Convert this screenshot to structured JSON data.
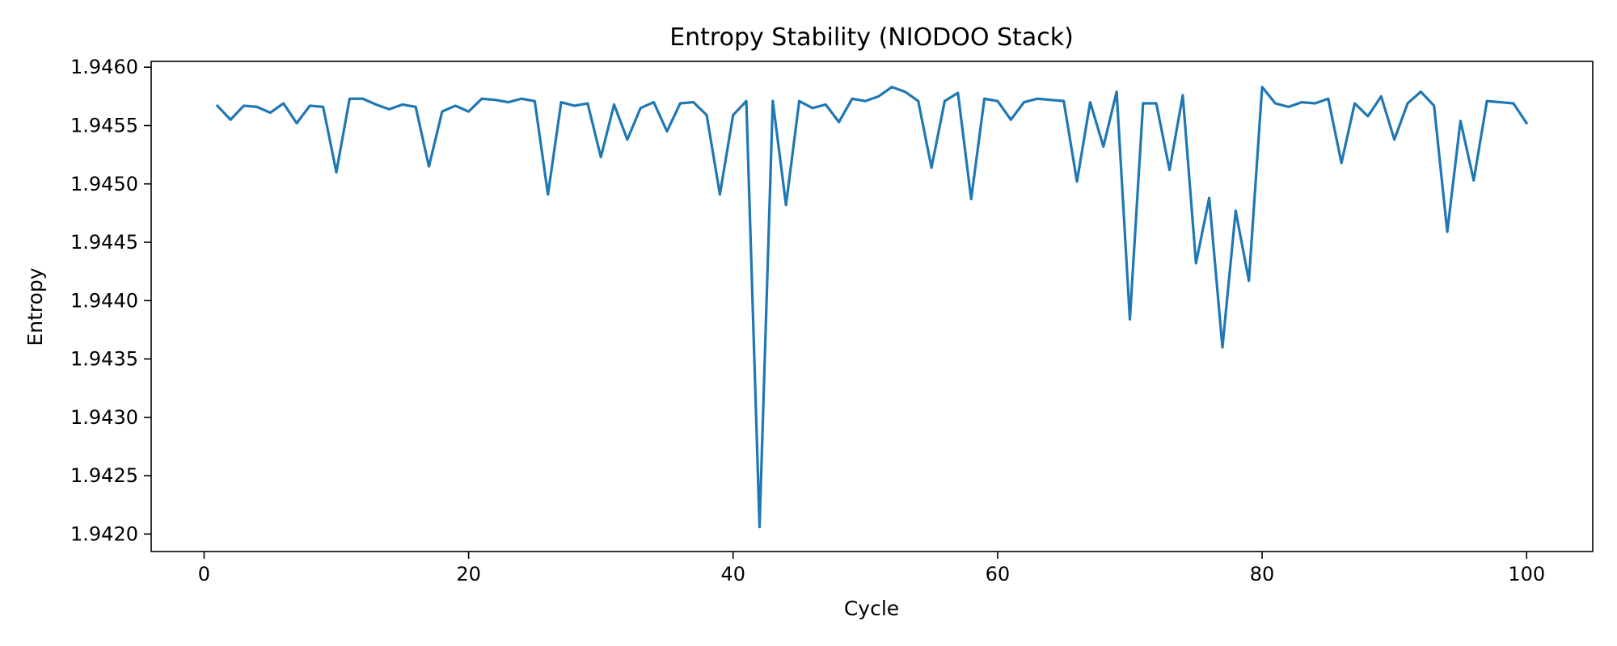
{
  "chart_data": {
    "type": "line",
    "title": "Entropy Stability (NIODOO Stack)",
    "xlabel": "Cycle",
    "ylabel": "Entropy",
    "xlim": [
      -4,
      105
    ],
    "ylim": [
      1.94185,
      1.94605
    ],
    "xticks": [
      0,
      20,
      40,
      60,
      80,
      100
    ],
    "xtick_labels": [
      "0",
      "20",
      "40",
      "60",
      "80",
      "100"
    ],
    "yticks": [
      1.942,
      1.9425,
      1.943,
      1.9435,
      1.944,
      1.9445,
      1.945,
      1.9455,
      1.946
    ],
    "ytick_labels": [
      "1.9420",
      "1.9425",
      "1.9430",
      "1.9435",
      "1.9440",
      "1.9445",
      "1.9450",
      "1.9455",
      "1.9460"
    ],
    "grid": false,
    "color": "#1f77b4",
    "series": [
      {
        "x": [
          1,
          2,
          3,
          4,
          5,
          6,
          7,
          8,
          9,
          10,
          11,
          12,
          13,
          14,
          15,
          16,
          17,
          18,
          19,
          20,
          21,
          22,
          23,
          24,
          25,
          26,
          27,
          28,
          29,
          30,
          31,
          32,
          33,
          34,
          35,
          36,
          37,
          38,
          39,
          40,
          41,
          42,
          43,
          44,
          45,
          46,
          47,
          48,
          49,
          50,
          51,
          52,
          53,
          54,
          55,
          56,
          57,
          58,
          59,
          60,
          61,
          62,
          63,
          64,
          65,
          66,
          67,
          68,
          69,
          70,
          71,
          72,
          73,
          74,
          75,
          76,
          77,
          78,
          79,
          80,
          81,
          82,
          83,
          84,
          85,
          86,
          87,
          88,
          89,
          90,
          91,
          92,
          93,
          94,
          95,
          96,
          97,
          98,
          99,
          100
        ],
        "values": [
          1.94567,
          1.94555,
          1.94567,
          1.94566,
          1.94561,
          1.94569,
          1.94552,
          1.94567,
          1.94566,
          1.9451,
          1.94573,
          1.94573,
          1.94568,
          1.94564,
          1.94568,
          1.94566,
          1.94515,
          1.94562,
          1.94567,
          1.94562,
          1.94573,
          1.94572,
          1.9457,
          1.94573,
          1.94571,
          1.94491,
          1.9457,
          1.94567,
          1.94569,
          1.94523,
          1.94568,
          1.94538,
          1.94565,
          1.9457,
          1.94545,
          1.94569,
          1.9457,
          1.94559,
          1.94491,
          1.94559,
          1.94571,
          1.94206,
          1.94571,
          1.94482,
          1.94571,
          1.94565,
          1.94568,
          1.94553,
          1.94573,
          1.94571,
          1.94575,
          1.94583,
          1.94579,
          1.94571,
          1.94514,
          1.94571,
          1.94578,
          1.94487,
          1.94573,
          1.94571,
          1.94555,
          1.9457,
          1.94573,
          1.94572,
          1.94571,
          1.94502,
          1.9457,
          1.94532,
          1.94579,
          1.94384,
          1.94569,
          1.94569,
          1.94512,
          1.94576,
          1.94432,
          1.94488,
          1.9436,
          1.94477,
          1.94417,
          1.94583,
          1.94569,
          1.94566,
          1.9457,
          1.94569,
          1.94573,
          1.94518,
          1.94569,
          1.94558,
          1.94575,
          1.94538,
          1.94569,
          1.94579,
          1.94567,
          1.94459,
          1.94554,
          1.94503,
          1.94571,
          1.9457,
          1.94569,
          1.94552
        ]
      }
    ]
  }
}
